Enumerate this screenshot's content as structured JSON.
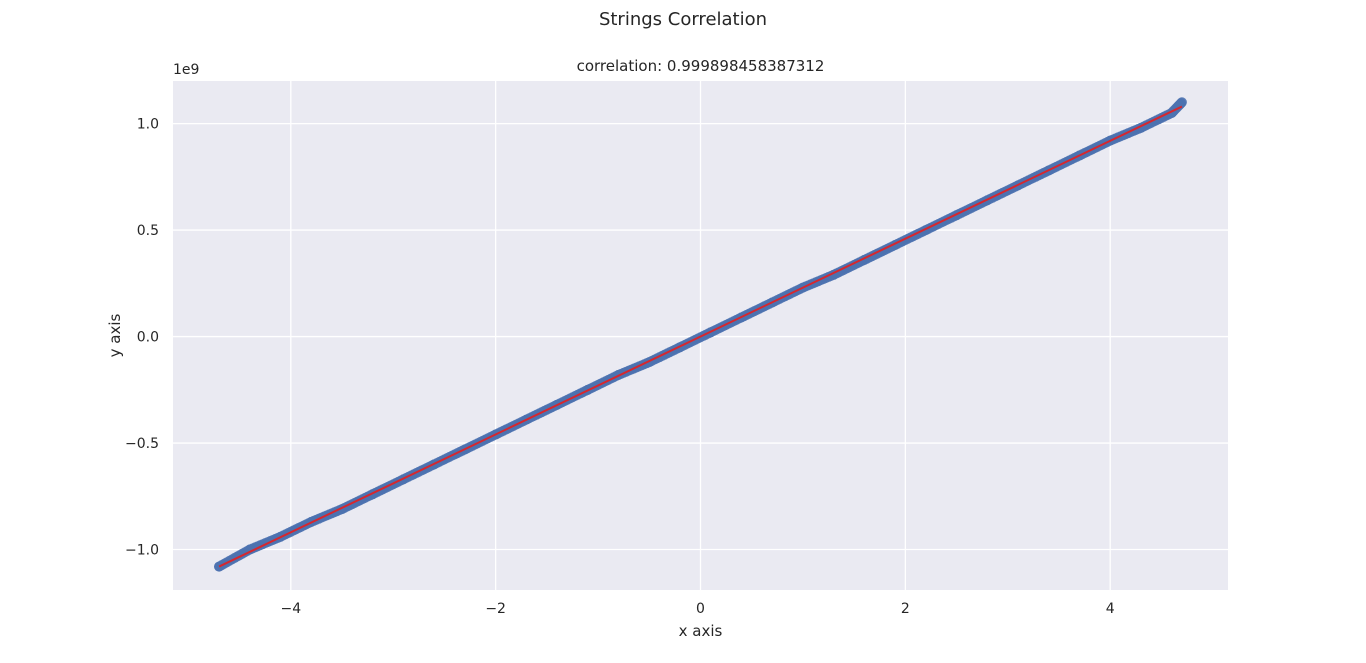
{
  "figure": {
    "suptitle": "Strings Correlation"
  },
  "chart_data": {
    "type": "scatter",
    "title": "correlation: 0.999898458387312",
    "xlabel": "x axis",
    "ylabel": "y axis",
    "y_offset_label": "1e9",
    "xlim": [
      -5.15,
      5.15
    ],
    "ylim": [
      -1.19,
      1.2
    ],
    "x_ticks": [
      -4,
      -2,
      0,
      2,
      4
    ],
    "x_tick_labels": [
      "−4",
      "−2",
      "0",
      "2",
      "4"
    ],
    "y_ticks": [
      -1.0,
      -0.5,
      0.0,
      0.5,
      1.0
    ],
    "y_tick_labels": [
      "−1.0",
      "−0.5",
      "0.0",
      "0.5",
      "1.0"
    ],
    "grid": true,
    "series": [
      {
        "x": [
          -4.7,
          -4.4,
          -4.1,
          -3.8,
          -3.5,
          -3.2,
          -2.9,
          -2.6,
          -2.3,
          -2.0,
          -1.7,
          -1.4,
          -1.1,
          -0.8,
          -0.5,
          -0.2,
          0.1,
          0.4,
          0.7,
          1.0,
          1.3,
          1.6,
          1.9,
          2.2,
          2.5,
          2.8,
          3.1,
          3.4,
          3.7,
          4.0,
          4.3,
          4.6,
          4.7
        ],
        "y": [
          -1.08,
          -1.0,
          -0.94,
          -0.87,
          -0.81,
          -0.74,
          -0.67,
          -0.6,
          -0.53,
          -0.46,
          -0.39,
          -0.32,
          -0.25,
          -0.18,
          -0.12,
          -0.05,
          0.02,
          0.09,
          0.16,
          0.23,
          0.29,
          0.36,
          0.43,
          0.5,
          0.57,
          0.64,
          0.71,
          0.78,
          0.85,
          0.92,
          0.98,
          1.05,
          1.1
        ]
      }
    ],
    "fit_line": {
      "x": [
        -4.7,
        4.7
      ],
      "y": [
        -1.08,
        1.08
      ]
    },
    "colors": {
      "points": "#4c72b0",
      "fit_line": "#d6272e",
      "plot_background": "#eaeaf2",
      "grid": "#ffffff"
    }
  }
}
